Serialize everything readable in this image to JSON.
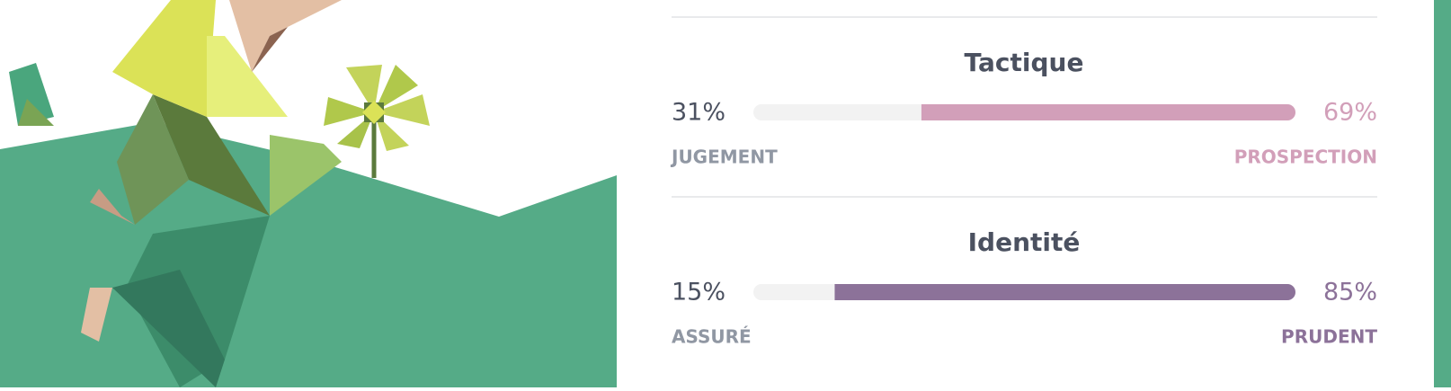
{
  "traits": [
    {
      "title": "Tactique",
      "color": "#d29fb9",
      "left": {
        "value": 31,
        "label": "31%",
        "name": "JUGEMENT"
      },
      "right": {
        "value": 69,
        "label": "69%",
        "name": "PROSPECTION"
      }
    },
    {
      "title": "Identité",
      "color": "#8c7299",
      "left": {
        "value": 15,
        "label": "15%",
        "name": "ASSURÉ"
      },
      "right": {
        "value": 85,
        "label": "85%",
        "name": "PRUDENT"
      }
    }
  ]
}
